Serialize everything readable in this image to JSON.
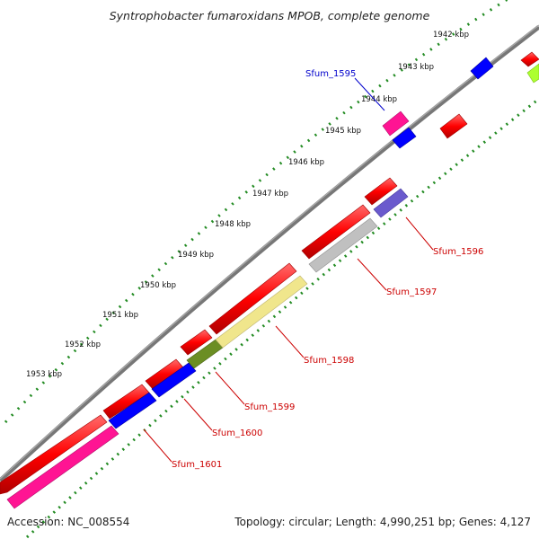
{
  "title": "Syntrophobacter fumaroxidans MPOB, complete genome",
  "footer": {
    "accession": "Accession: NC_008554",
    "info": "Topology: circular; Length: 4,990,251 bp; Genes: 4,127"
  },
  "scale_labels": [
    "1942 kbp",
    "1943 kbp",
    "1944 kbp",
    "1945 kbp",
    "1946 kbp",
    "1947 kbp",
    "1948 kbp",
    "1949 kbp",
    "1950 kbp",
    "1951 kbp",
    "1952 kbp",
    "1953 kbp"
  ],
  "gene_labels": {
    "sfum_1595": "Sfum_1595",
    "sfum_1596": "Sfum_1596",
    "sfum_1597": "Sfum_1597",
    "sfum_1598": "Sfum_1598",
    "sfum_1599": "Sfum_1599",
    "sfum_1600": "Sfum_1600",
    "sfum_1601": "Sfum_1601"
  },
  "colors": {
    "backbone": "#808080",
    "ticks": "#228b22",
    "forward": "#ff0000",
    "reverse": "#0000ff",
    "magenta": "#ff1493",
    "purple": "#6a5acd",
    "grey": "#c0c0c0",
    "khaki": "#f0e68c",
    "olive": "#6b8e23",
    "lime": "#adff2f",
    "label_red": "#cc0000",
    "label_blue": "#0000cc"
  }
}
